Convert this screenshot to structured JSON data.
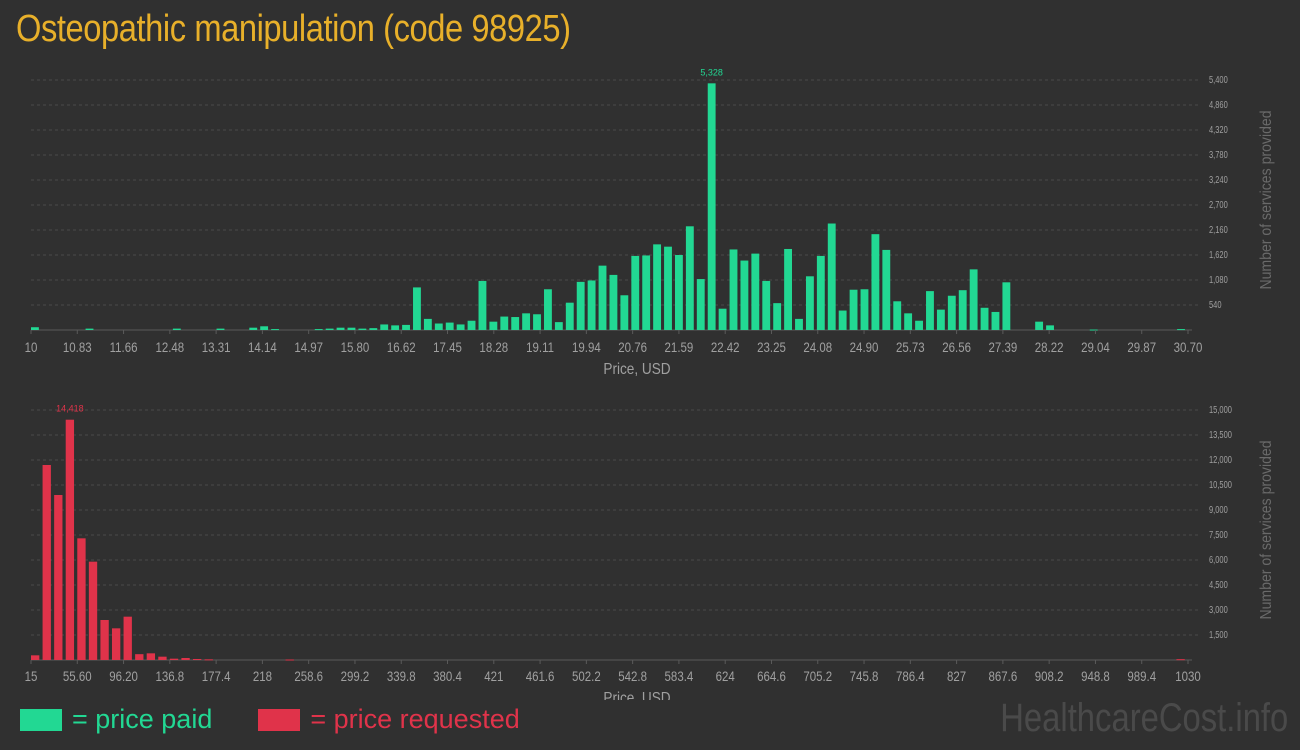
{
  "title": "Osteopathic manipulation (code 98925)",
  "colors": {
    "paid": "#22d893",
    "requested": "#e0334a",
    "title": "#e8b02a",
    "axis": "#a0a0a0",
    "grid": "#4a4a4a"
  },
  "legend": {
    "paid_label": "= price paid",
    "requested_label": "= price requested"
  },
  "watermark": "HealthcareCost.info",
  "chart_data": [
    {
      "type": "bar",
      "name": "paid",
      "xlabel": "Price, USD",
      "ylabel": "Number of services provided",
      "x_ticks": [
        "10",
        "10.83",
        "11.66",
        "12.48",
        "13.31",
        "14.14",
        "14.97",
        "15.80",
        "16.62",
        "17.45",
        "18.28",
        "19.11",
        "19.94",
        "20.76",
        "21.59",
        "22.42",
        "23.25",
        "24.08",
        "24.90",
        "25.73",
        "26.56",
        "27.39",
        "28.22",
        "29.04",
        "29.87",
        "30.70"
      ],
      "y_ticks": [
        "540",
        "1,080",
        "1,620",
        "2,160",
        "2,700",
        "3,240",
        "3,780",
        "4,320",
        "4,860",
        "5,400"
      ],
      "ylim": [
        0,
        5400
      ],
      "peak_label": "5,328",
      "grid": true,
      "values": [
        60,
        0,
        0,
        0,
        0,
        30,
        0,
        0,
        0,
        0,
        0,
        0,
        0,
        30,
        0,
        0,
        0,
        30,
        0,
        0,
        50,
        80,
        20,
        0,
        0,
        0,
        20,
        30,
        50,
        50,
        30,
        40,
        120,
        100,
        110,
        920,
        240,
        140,
        160,
        120,
        200,
        1060,
        180,
        290,
        280,
        360,
        340,
        880,
        170,
        590,
        1040,
        1070,
        1390,
        1190,
        750,
        1600,
        1610,
        1850,
        1800,
        1620,
        2240,
        1100,
        5328,
        460,
        1740,
        1500,
        1650,
        1060,
        580,
        1750,
        240,
        1160,
        1600,
        2300,
        420,
        870,
        880,
        2070,
        1730,
        620,
        360,
        200,
        840,
        440,
        740,
        860,
        1310,
        480,
        390,
        1030,
        0,
        0,
        180,
        100,
        0,
        0,
        0,
        10,
        0,
        0,
        0,
        0,
        0,
        0,
        0,
        20
      ]
    },
    {
      "type": "bar",
      "name": "requested",
      "xlabel": "Price, USD",
      "ylabel": "Number of services provided",
      "x_ticks": [
        "15",
        "55.60",
        "96.20",
        "136.8",
        "177.4",
        "218",
        "258.6",
        "299.2",
        "339.8",
        "380.4",
        "421",
        "461.6",
        "502.2",
        "542.8",
        "583.4",
        "624",
        "664.6",
        "705.2",
        "745.8",
        "786.4",
        "827",
        "867.6",
        "908.2",
        "948.8",
        "989.4",
        "1030"
      ],
      "y_ticks": [
        "1,500",
        "3,000",
        "4,500",
        "6,000",
        "7,500",
        "9,000",
        "10,500",
        "12,000",
        "13,500",
        "15,000"
      ],
      "ylim": [
        0,
        15000
      ],
      "peak_label": "14,418",
      "grid": true,
      "values": [
        280,
        11700,
        9900,
        14418,
        7300,
        5900,
        2400,
        1900,
        2600,
        350,
        400,
        200,
        80,
        120,
        60,
        40,
        0,
        0,
        0,
        0,
        0,
        0,
        30,
        0,
        0,
        0,
        0,
        0,
        0,
        0,
        0,
        0,
        0,
        0,
        0,
        0,
        0,
        0,
        0,
        0,
        0,
        0,
        0,
        0,
        0,
        0,
        0,
        0,
        0,
        0,
        0,
        0,
        0,
        0,
        0,
        0,
        0,
        0,
        0,
        0,
        0,
        0,
        0,
        0,
        0,
        0,
        0,
        0,
        0,
        0,
        0,
        0,
        0,
        0,
        0,
        0,
        0,
        0,
        0,
        0,
        0,
        0,
        0,
        0,
        0,
        0,
        0,
        0,
        0,
        0,
        0,
        0,
        0,
        0,
        0,
        0,
        0,
        0,
        0,
        50
      ]
    }
  ]
}
